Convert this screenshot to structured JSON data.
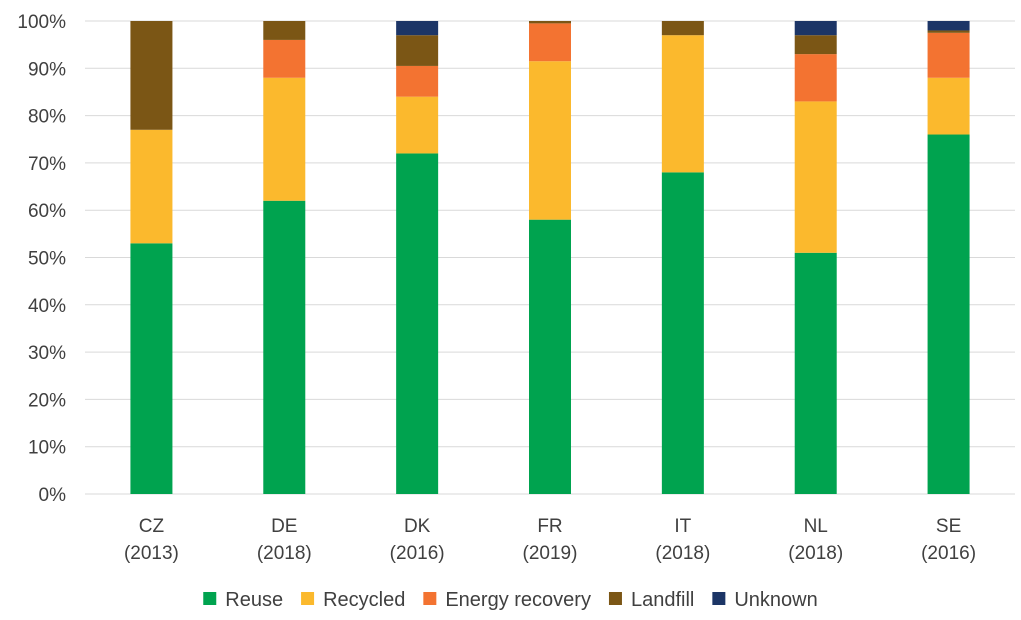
{
  "chart_data": {
    "type": "bar",
    "stacked": true,
    "title": "",
    "xlabel": "",
    "ylabel": "",
    "ylim": [
      0,
      100
    ],
    "y_ticks": [
      "0%",
      "10%",
      "20%",
      "30%",
      "40%",
      "50%",
      "60%",
      "70%",
      "80%",
      "90%",
      "100%"
    ],
    "grid": true,
    "legend_position": "bottom",
    "categories": [
      [
        "CZ",
        "(2013)"
      ],
      [
        "DE",
        "(2018)"
      ],
      [
        "DK",
        "(2016)"
      ],
      [
        "FR",
        "(2019)"
      ],
      [
        "IT",
        "(2018)"
      ],
      [
        "NL",
        "(2018)"
      ],
      [
        "SE",
        "(2016)"
      ]
    ],
    "series": [
      {
        "name": "Reuse",
        "color": "#00a34f",
        "values": [
          53,
          62,
          72,
          58,
          68,
          51,
          76
        ]
      },
      {
        "name": "Recycled",
        "color": "#fbb92d",
        "values": [
          24,
          26,
          12,
          33.5,
          29,
          32,
          12
        ]
      },
      {
        "name": "Energy recovery",
        "color": "#f37331",
        "values": [
          0,
          8,
          6.5,
          8,
          0,
          10,
          9.5
        ]
      },
      {
        "name": "Landfill",
        "color": "#7b5615",
        "values": [
          23,
          4,
          6.5,
          0.5,
          3,
          4,
          0.5
        ]
      },
      {
        "name": "Unknown",
        "color": "#1c3566",
        "values": [
          0,
          0,
          3,
          0,
          0,
          3,
          2
        ]
      }
    ]
  }
}
